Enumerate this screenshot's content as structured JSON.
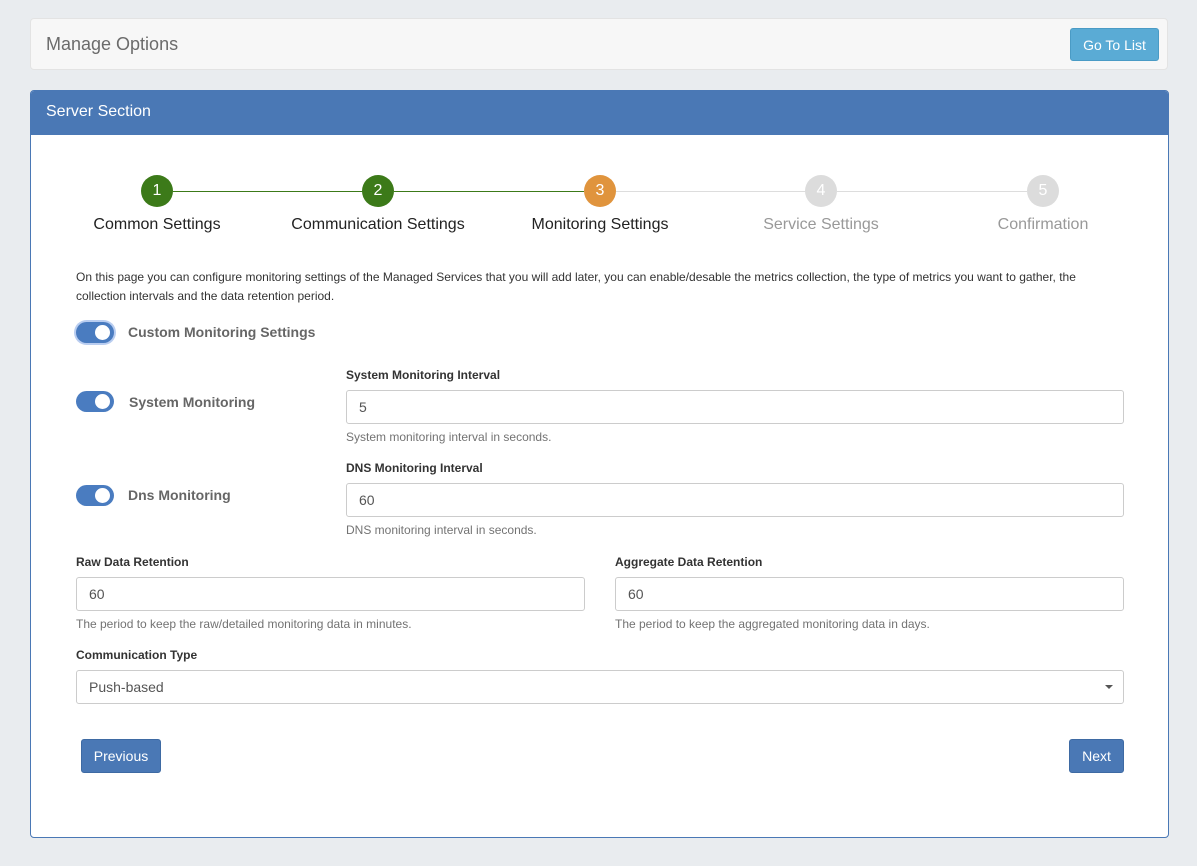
{
  "header": {
    "title": "Manage Options",
    "go_to_list": "Go To List"
  },
  "panel": {
    "title": "Server Section"
  },
  "colors": {
    "done": "#3c7a19",
    "active": "#e0943d",
    "pending": "#dcdcdc",
    "primary": "#4a78b5"
  },
  "steps": [
    {
      "number": "1",
      "label": "Common Settings",
      "state": "done"
    },
    {
      "number": "2",
      "label": "Communication Settings",
      "state": "done"
    },
    {
      "number": "3",
      "label": "Monitoring Settings",
      "state": "active"
    },
    {
      "number": "4",
      "label": "Service Settings",
      "state": "pending"
    },
    {
      "number": "5",
      "label": "Confirmation",
      "state": "pending"
    }
  ],
  "description": "On this page you can configure monitoring settings of the Managed Services that you will add later, you can enable/desable the metrics collection, the type of metrics you want to gather, the collection intervals and the data retention period.",
  "custom_monitoring": {
    "label": "Custom Monitoring Settings",
    "enabled": true
  },
  "system_monitoring": {
    "label": "System Monitoring",
    "enabled": true,
    "interval_label": "System Monitoring Interval",
    "interval_value": "5",
    "help": "System monitoring interval in seconds."
  },
  "dns_monitoring": {
    "label": "Dns Monitoring",
    "enabled": true,
    "interval_label": "DNS Monitoring Interval",
    "interval_value": "60",
    "help": "DNS monitoring interval in seconds."
  },
  "raw_retention": {
    "label": "Raw Data Retention",
    "value": "60",
    "help": "The period to keep the raw/detailed monitoring data in minutes."
  },
  "aggregate_retention": {
    "label": "Aggregate Data Retention",
    "value": "60",
    "help": "The period to keep the aggregated monitoring data in days."
  },
  "communication_type": {
    "label": "Communication Type",
    "value": "Push-based"
  },
  "buttons": {
    "previous": "Previous",
    "next": "Next"
  }
}
